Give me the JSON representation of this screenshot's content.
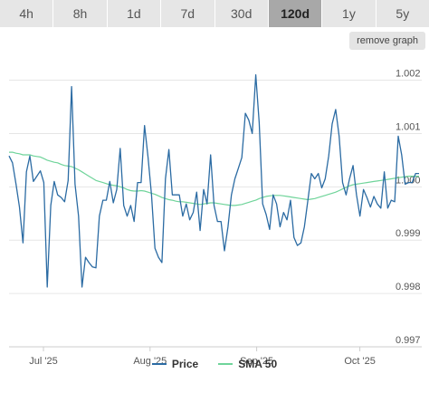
{
  "toolbar": {
    "tabs": [
      {
        "label": "4h",
        "active": false
      },
      {
        "label": "8h",
        "active": false
      },
      {
        "label": "1d",
        "active": false
      },
      {
        "label": "7d",
        "active": false
      },
      {
        "label": "30d",
        "active": false
      },
      {
        "label": "120d",
        "active": true
      },
      {
        "label": "1y",
        "active": false
      },
      {
        "label": "5y",
        "active": false
      }
    ],
    "remove_label": "remove graph"
  },
  "colors": {
    "price": "#2b6ba3",
    "sma": "#6fd49a",
    "grid": "#e6e6e6",
    "tick_text": "#555555"
  },
  "chart_data": {
    "type": "line",
    "xlabel": "",
    "ylabel": "",
    "grid": true,
    "legend_position": "bottom",
    "ylim": [
      0.997,
      1.0024
    ],
    "yticks": [
      "0.997",
      "0.998",
      "0.999",
      "1.000",
      "1.001",
      "1.002"
    ],
    "xticks": [
      {
        "label": "Jul '25",
        "date": "2025-07-01"
      },
      {
        "label": "Aug '25",
        "date": "2025-08-01"
      },
      {
        "label": "Sep '25",
        "date": "2025-09-01"
      },
      {
        "label": "Oct '25",
        "date": "2025-10-01"
      }
    ],
    "x_start": "2025-06-21",
    "x_end": "2025-10-19",
    "series": [
      {
        "name": "Price",
        "values": [
          1.00058,
          1.00045,
          1.00005,
          0.99962,
          0.99895,
          1.00028,
          1.00058,
          1.0001,
          1.0002,
          1.0003,
          1.00008,
          0.99812,
          0.99965,
          1.0001,
          0.99985,
          0.9998,
          0.99972,
          1.00012,
          1.00188,
          1.00005,
          0.99945,
          0.99812,
          0.99868,
          0.99858,
          0.9985,
          0.99848,
          0.99945,
          0.99975,
          0.99975,
          1.0001,
          0.9997,
          0.99995,
          1.00072,
          0.99965,
          0.99945,
          0.99965,
          0.99935,
          1.00008,
          1.00008,
          1.00115,
          1.00055,
          0.99985,
          0.99885,
          0.99868,
          0.99858,
          1.00015,
          1.0007,
          0.99985,
          0.99985,
          0.99985,
          0.99945,
          0.99968,
          0.99938,
          0.99952,
          0.9999,
          0.99918,
          0.99995,
          0.99968,
          1.0006,
          0.99965,
          0.99935,
          0.99935,
          0.9988,
          0.99925,
          0.99985,
          1.00015,
          1.00035,
          1.00055,
          1.00138,
          1.00125,
          1.001,
          1.0021,
          1.0012,
          0.99968,
          0.99948,
          0.9992,
          0.99985,
          0.99968,
          0.99925,
          0.99952,
          0.99938,
          0.99975,
          0.99905,
          0.9989,
          0.99895,
          0.99925,
          0.99975,
          1.00025,
          1.00015,
          1.00025,
          0.99998,
          1.00015,
          1.00058,
          1.00118,
          1.00145,
          1.00095,
          1.00008,
          0.99985,
          1.00015,
          1.0004,
          0.99985,
          0.99945,
          0.99995,
          0.9998,
          0.99962,
          0.99982,
          0.99968,
          0.9996,
          1.00028,
          0.9996,
          0.99975,
          0.99972,
          1.00095,
          1.0006,
          1.00005,
          1.00008,
          1.00008,
          1.00025,
          1.00025
        ]
      },
      {
        "name": "SMA 50",
        "values": [
          1.00065,
          1.00065,
          1.00063,
          1.00062,
          1.0006,
          1.0006,
          1.0006,
          1.00058,
          1.00057,
          1.00056,
          1.00053,
          1.0005,
          1.00048,
          1.00046,
          1.00045,
          1.00042,
          1.0004,
          1.00039,
          1.00038,
          1.00035,
          1.00032,
          1.00028,
          1.00024,
          1.0002,
          1.00016,
          1.00012,
          1.0001,
          1.00008,
          1.00006,
          1.00004,
          1.00003,
          1.00002,
          1.0,
          0.99998,
          0.99995,
          0.99993,
          0.99992,
          0.99992,
          0.99993,
          0.99992,
          0.9999,
          0.99988,
          0.99986,
          0.99983,
          0.9998,
          0.99978,
          0.99976,
          0.99975,
          0.99973,
          0.99972,
          0.99972,
          0.99971,
          0.9997,
          0.99969,
          0.99968,
          0.99967,
          0.99968,
          0.99969,
          0.9997,
          0.9997,
          0.99969,
          0.99968,
          0.99967,
          0.99966,
          0.99965,
          0.99965,
          0.99966,
          0.99967,
          0.99969,
          0.99971,
          0.99973,
          0.99975,
          0.99978,
          0.9998,
          0.99982,
          0.99983,
          0.99984,
          0.99984,
          0.99984,
          0.99983,
          0.99982,
          0.99981,
          0.9998,
          0.99979,
          0.99978,
          0.99977,
          0.99976,
          0.99977,
          0.99978,
          0.9998,
          0.99982,
          0.99984,
          0.99986,
          0.99988,
          0.9999,
          0.99993,
          0.99996,
          0.99999,
          1.00002,
          1.00004,
          1.00005,
          1.00006,
          1.00007,
          1.00008,
          1.00009,
          1.0001,
          1.00011,
          1.00012,
          1.00013,
          1.00014,
          1.00015,
          1.00016,
          1.00017,
          1.00018,
          1.00019,
          1.0002,
          1.0002,
          1.0002,
          1.0002
        ]
      }
    ]
  }
}
